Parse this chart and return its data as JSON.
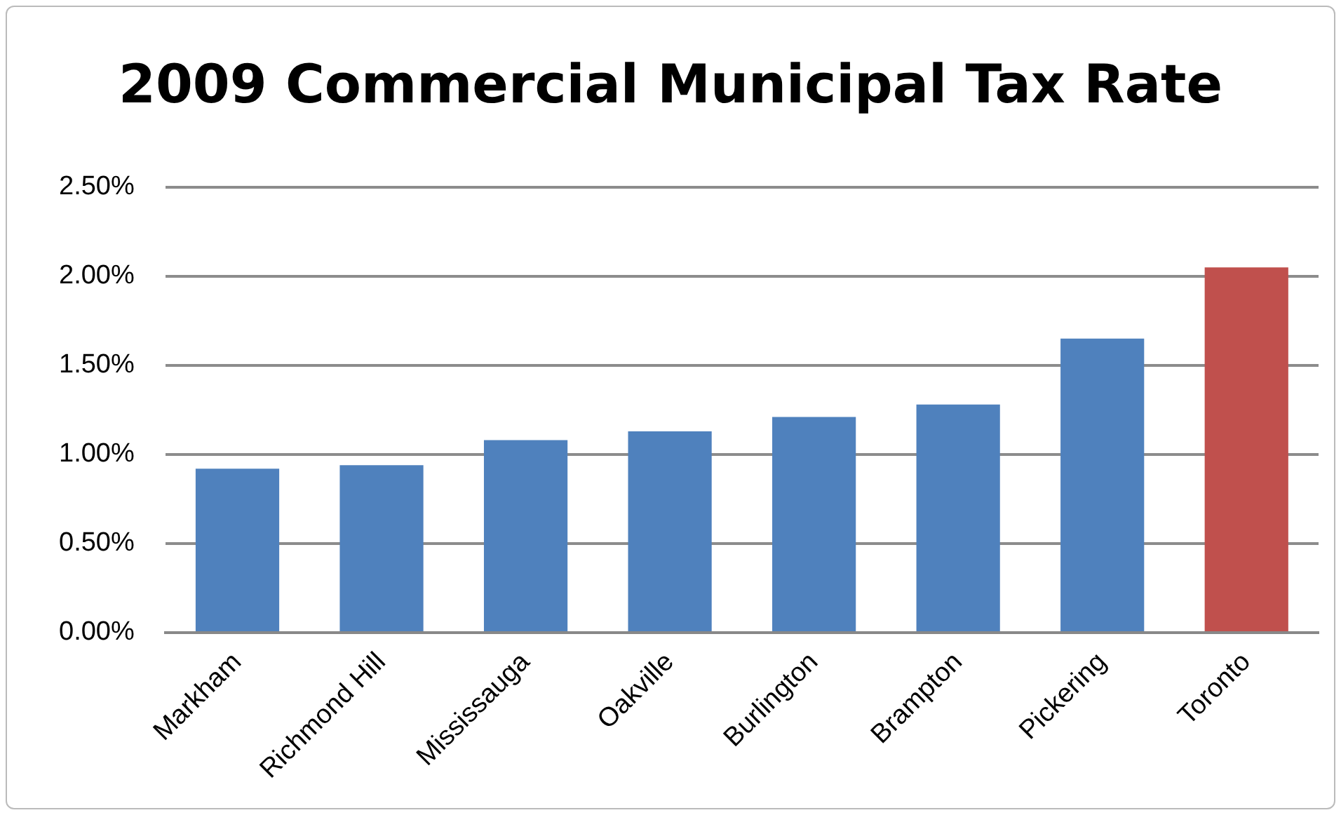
{
  "chart_data": {
    "type": "bar",
    "title": "2009 Commercial Municipal Tax Rate",
    "categories": [
      "Markham",
      "Richmond Hill",
      "Mississauga",
      "Oakville",
      "Burlington",
      "Brampton",
      "Pickering",
      "Toronto"
    ],
    "values": [
      0.92,
      0.94,
      1.08,
      1.13,
      1.21,
      1.28,
      1.65,
      2.05
    ],
    "colors": [
      "#4f81bd",
      "#4f81bd",
      "#4f81bd",
      "#4f81bd",
      "#4f81bd",
      "#4f81bd",
      "#4f81bd",
      "#c0504d"
    ],
    "ylim": [
      0,
      2.5
    ],
    "yticks": [
      {
        "value": 0,
        "label": "0.00%"
      },
      {
        "value": 0.5,
        "label": "0.50%"
      },
      {
        "value": 1,
        "label": "1.00%"
      },
      {
        "value": 1.5,
        "label": "1.50%"
      },
      {
        "value": 2,
        "label": "2.00%"
      },
      {
        "value": 2.5,
        "label": "2.50%"
      }
    ],
    "grid": "y"
  }
}
